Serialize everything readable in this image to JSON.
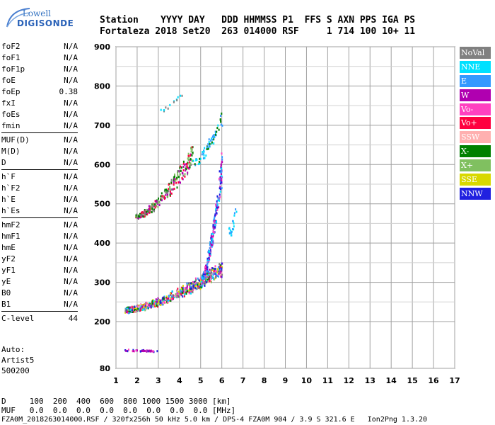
{
  "logo": {
    "top": "Lowell",
    "bottom": "DIGISONDE"
  },
  "header": {
    "line1": "Station    YYYY DAY   DDD HHMMSS P1  FFS S AXN PPS IGA PS",
    "line2": "Fortaleza 2018 Set20  263 014000 RSF     1 714 100 10+ 11"
  },
  "params": [
    {
      "group": 1,
      "items": [
        {
          "label": "foF2",
          "value": "N/A"
        },
        {
          "label": "foF1",
          "value": "N/A"
        },
        {
          "label": "foF1p",
          "value": "N/A"
        },
        {
          "label": "foE",
          "value": "N/A"
        },
        {
          "label": "foEp",
          "value": "0.38"
        },
        {
          "label": "fxI",
          "value": "N/A"
        },
        {
          "label": "foEs",
          "value": "N/A"
        },
        {
          "label": "fmin",
          "value": "N/A"
        }
      ]
    },
    {
      "group": 2,
      "items": [
        {
          "label": "MUF(D)",
          "value": "N/A"
        },
        {
          "label": "M(D)",
          "value": "N/A"
        },
        {
          "label": "D",
          "value": "N/A"
        }
      ]
    },
    {
      "group": 3,
      "items": [
        {
          "label": "h`F",
          "value": "N/A"
        },
        {
          "label": "h`F2",
          "value": "N/A"
        },
        {
          "label": "h`E",
          "value": "N/A"
        },
        {
          "label": "h`Es",
          "value": "N/A"
        }
      ]
    },
    {
      "group": 4,
      "items": [
        {
          "label": "hmF2",
          "value": "N/A"
        },
        {
          "label": "hmF1",
          "value": "N/A"
        },
        {
          "label": "hmE",
          "value": "N/A"
        },
        {
          "label": "yF2",
          "value": "N/A"
        },
        {
          "label": "yF1",
          "value": "N/A"
        },
        {
          "label": "yE",
          "value": "N/A"
        },
        {
          "label": "B0",
          "value": "N/A"
        },
        {
          "label": "B1",
          "value": "N/A"
        }
      ]
    },
    {
      "group": 5,
      "items": [
        {
          "label": "C-level",
          "value": "44"
        }
      ]
    }
  ],
  "auto": [
    "Auto:",
    "Artist5",
    "500200"
  ],
  "legend": [
    {
      "label": "NoVal",
      "color": "#808080"
    },
    {
      "label": "NNE",
      "color": "#00e0ff"
    },
    {
      "label": "E",
      "color": "#3399ff"
    },
    {
      "label": "W",
      "color": "#b000b0"
    },
    {
      "label": "Vo-",
      "color": "#ff40c0"
    },
    {
      "label": "Vo+",
      "color": "#ff0040"
    },
    {
      "label": "SSW",
      "color": "#ffb0b0"
    },
    {
      "label": "X-",
      "color": "#008000"
    },
    {
      "label": "X+",
      "color": "#80c060"
    },
    {
      "label": "SSE",
      "color": "#d8d800"
    },
    {
      "label": "NNW",
      "color": "#2020e0"
    }
  ],
  "bottom": {
    "d_line": "D     100  200  400  600  800 1000 1500 3000 [km]",
    "muf_line": "MUF   0.0  0.0  0.0  0.0  0.0  0.0  0.0  0.0 [MHz]",
    "footer": "FZA0M_2018263014000.RSF / 320fx256h 50 kHz 5.0 km / DPS-4 FZA0M 904 / 3.9 S 321.6 E   Ion2Png 1.3.20"
  },
  "chart_data": {
    "type": "scatter",
    "xlim": [
      1,
      17
    ],
    "ylim": [
      80,
      900
    ],
    "xticks": [
      1,
      2,
      3,
      4,
      5,
      6,
      7,
      8,
      9,
      10,
      11,
      12,
      13,
      14,
      15,
      16,
      17
    ],
    "yticks": [
      80,
      200,
      300,
      400,
      500,
      600,
      700,
      800,
      900
    ],
    "grid": true,
    "legend_position": "right",
    "traces": [
      {
        "name": "E-layer trace",
        "x": [
          1.4,
          3.0
        ],
        "y": [
          128,
          124
        ],
        "colors": [
          "W",
          "NNW",
          "Vo-"
        ]
      },
      {
        "name": "F-layer trace",
        "x": [
          1.4,
          6.0
        ],
        "y": [
          228,
          320
        ],
        "colors": [
          "Vo+",
          "Vo-",
          "X-",
          "X+",
          "NNE",
          "E",
          "W",
          "SSE",
          "NNW",
          "NoVal",
          "SSW"
        ]
      },
      {
        "name": "F-layer rise",
        "x": [
          5.0,
          6.0
        ],
        "y": [
          300,
          560
        ],
        "colors": [
          "NNE",
          "E",
          "W",
          "Vo-",
          "NNW"
        ]
      },
      {
        "name": "Multihop trace",
        "x": [
          1.9,
          4.6
        ],
        "y": [
          465,
          600
        ],
        "colors": [
          "X-",
          "X+",
          "W",
          "Vo+",
          "NoVal"
        ]
      },
      {
        "name": "Multihop rise",
        "x": [
          4.6,
          6.0
        ],
        "y": [
          600,
          700
        ],
        "colors": [
          "NNE",
          "E",
          "X-"
        ]
      },
      {
        "name": "Upper trace",
        "x": [
          3.0,
          4.1
        ],
        "y": [
          735,
          780
        ],
        "colors": [
          "NNE",
          "NoVal"
        ]
      },
      {
        "name": "Isolated echoes",
        "x": [
          6.3,
          6.7
        ],
        "y": [
          420,
          490
        ],
        "colors": [
          "E",
          "NNE"
        ]
      }
    ]
  }
}
